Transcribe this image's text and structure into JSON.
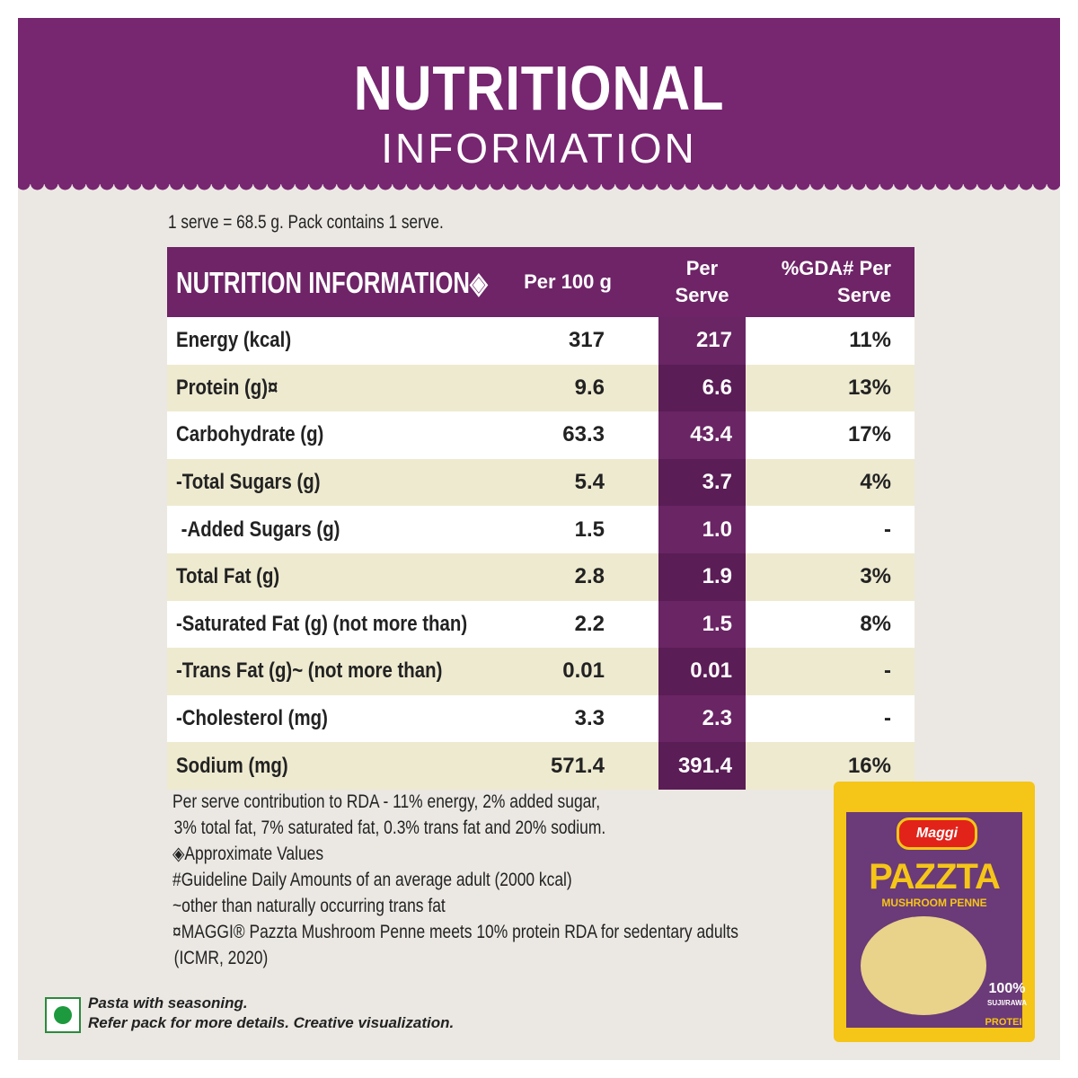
{
  "header": {
    "title": "NUTRITIONAL",
    "subtitle": "INFORMATION"
  },
  "serving": "1 serve = 68.5 g. Pack contains 1 serve.",
  "table": {
    "columns": [
      "NUTRITION INFORMATION◈",
      "Per 100 g",
      "Per Serve",
      "%GDA# Per Serve"
    ],
    "rows": [
      [
        "Energy (kcal)",
        "317",
        "217",
        "11%"
      ],
      [
        "Protein (g)¤",
        "9.6",
        "6.6",
        "13%"
      ],
      [
        "Carbohydrate (g)",
        "63.3",
        "43.4",
        "17%"
      ],
      [
        "-Total Sugars (g)",
        "5.4",
        "3.7",
        "4%"
      ],
      [
        " -Added Sugars (g)",
        "1.5",
        "1.0",
        "-"
      ],
      [
        "Total Fat (g)",
        "2.8",
        "1.9",
        "3%"
      ],
      [
        "-Saturated Fat (g) (not more than)",
        "2.2",
        "1.5",
        "8%"
      ],
      [
        "-Trans Fat (g)~ (not more than)",
        "0.01",
        "0.01",
        "-"
      ],
      [
        "-Cholesterol (mg)",
        "3.3",
        "2.3",
        "-"
      ],
      [
        "Sodium (mg)",
        "571.4",
        "391.4",
        "16%"
      ]
    ]
  },
  "notes": [
    "Per serve contribution to RDA - 11% energy, 2% added sugar,",
    "3% total fat, 7% saturated fat, 0.3% trans fat and 20% sodium.",
    "◈Approximate Values",
    "#Guideline Daily Amounts of an average adult (2000 kcal)",
    "~other than naturally occurring trans fat",
    "¤MAGGI® Pazzta Mushroom Penne meets 10% protein RDA for sedentary adults",
    "(ICMR, 2020)"
  ],
  "footer": [
    "Pasta with seasoning.",
    "Refer pack for more details. Creative visualization."
  ],
  "pack": {
    "brand": "Maggi",
    "name": "PAZZTA",
    "variant": "MUSHROOM PENNE",
    "badge": "100%",
    "badge_sub": "SUJI/RAWA",
    "protein": "PROTEIN"
  }
}
